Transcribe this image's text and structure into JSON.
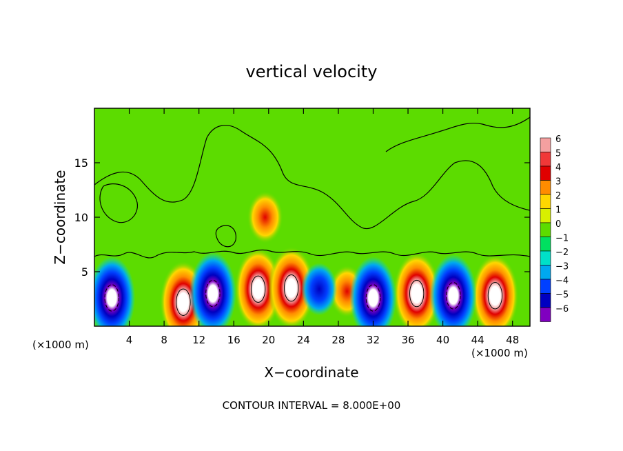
{
  "chart_data": {
    "type": "heatmap",
    "title": "vertical velocity",
    "xlabel": "X−coordinate",
    "ylabel": "Z−coordinate",
    "x_unit": "(×1000 m)",
    "x_unit_right": "(×1000 m)",
    "xlim": [
      0,
      50
    ],
    "ylim": [
      0,
      20
    ],
    "x_ticks": [
      4,
      8,
      12,
      16,
      20,
      24,
      28,
      32,
      36,
      40,
      44,
      48
    ],
    "y_ticks": [
      5,
      10,
      15
    ],
    "footer": "CONTOUR INTERVAL = 8.000E+00",
    "colorbar": {
      "labels": [
        "6",
        "5",
        "4",
        "3",
        "2",
        "1",
        "0",
        "−1",
        "−2",
        "−3",
        "−4",
        "−5",
        "−6"
      ],
      "range": [
        -6,
        6
      ],
      "colors": [
        "#f4a0a0",
        "#f03838",
        "#e00000",
        "#ff8c00",
        "#ffd700",
        "#d8f000",
        "#5cdc00",
        "#00e060",
        "#00e0c8",
        "#00a8f0",
        "#0040ff",
        "#0000c0",
        "#8000c0"
      ]
    },
    "features": [
      {
        "type": "updraft",
        "x": 10.2,
        "z": 2.2,
        "peak": 6
      },
      {
        "type": "updraft",
        "x": 18.8,
        "z": 3.4,
        "peak": 6
      },
      {
        "type": "updraft",
        "x": 22.6,
        "z": 3.5,
        "peak": 6
      },
      {
        "type": "updraft",
        "x": 37.0,
        "z": 3.0,
        "peak": 6
      },
      {
        "type": "updraft",
        "x": 46.0,
        "z": 2.8,
        "peak": 6
      },
      {
        "type": "updraft",
        "x": 29.0,
        "z": 3.2,
        "peak": 4
      },
      {
        "type": "updraft",
        "x": 19.6,
        "z": 10.0,
        "peak": 4
      },
      {
        "type": "downdraft",
        "x": 2.0,
        "z": 2.6,
        "peak": -6
      },
      {
        "type": "downdraft",
        "x": 13.6,
        "z": 3.0,
        "peak": -5
      },
      {
        "type": "downdraft",
        "x": 32.0,
        "z": 2.6,
        "peak": -6
      },
      {
        "type": "downdraft",
        "x": 41.2,
        "z": 2.8,
        "peak": -6
      },
      {
        "type": "downdraft",
        "x": 25.8,
        "z": 3.4,
        "peak": -4
      }
    ]
  }
}
